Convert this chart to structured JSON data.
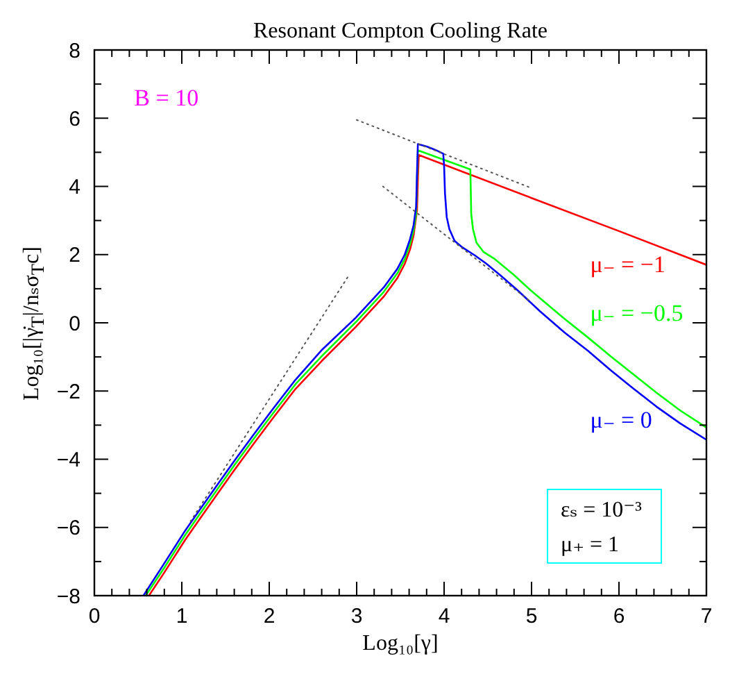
{
  "chart_data": {
    "type": "line",
    "title": "Resonant Compton Cooling Rate",
    "xlabel": "Log₁₀[γ]",
    "ylabel": "Log₁₀[|γ̇$_{T}$|/nₛσ$_{T}$c]",
    "annotations": [
      "B = 10",
      "εₛ = 10⁻³",
      "μ₊ = 1"
    ],
    "xlim": [
      0,
      7
    ],
    "xticks": [
      0,
      {
        "value": 0.2,
        "label": null
      },
      {
        "value": 0.4,
        "label": null
      },
      {
        "value": 0.6,
        "label": null
      },
      {
        "value": 0.8,
        "label": null
      },
      1,
      {
        "value": 1.2,
        "label": null
      },
      {
        "value": 1.4,
        "label": null
      },
      {
        "value": 1.6,
        "label": null
      },
      {
        "value": 1.8,
        "label": null
      },
      2,
      {
        "value": 2.2,
        "label": null
      },
      {
        "value": 2.4,
        "label": null
      },
      {
        "value": 2.6,
        "label": null
      },
      {
        "value": 2.8,
        "label": null
      },
      3,
      {
        "value": 3.2,
        "label": null
      },
      {
        "value": 3.4,
        "label": null
      },
      {
        "value": 3.6,
        "label": null
      },
      {
        "value": 3.8,
        "label": null
      },
      4,
      {
        "value": 4.2,
        "label": null
      },
      {
        "value": 4.4,
        "label": null
      },
      {
        "value": 4.6,
        "label": null
      },
      {
        "value": 4.8,
        "label": null
      },
      5,
      {
        "value": 5.2,
        "label": null
      },
      {
        "value": 5.4,
        "label": null
      },
      {
        "value": 5.6,
        "label": null
      },
      {
        "value": 5.8,
        "label": null
      },
      6,
      {
        "value": 6.2,
        "label": null
      },
      {
        "value": 6.4,
        "label": null
      },
      {
        "value": 6.6,
        "label": null
      },
      {
        "value": 6.8,
        "label": null
      },
      7
    ],
    "ylim": [
      -8,
      8
    ],
    "yticks": [
      -8,
      {
        "value": -7,
        "label": null
      },
      -6,
      {
        "value": -5,
        "label": null
      },
      -4,
      {
        "value": -3,
        "label": null
      },
      -2,
      {
        "value": -1,
        "label": null
      },
      0,
      {
        "value": 1,
        "label": null
      },
      2,
      {
        "value": 3,
        "label": null
      },
      4,
      {
        "value": 5,
        "label": null
      },
      6,
      {
        "value": 7,
        "label": null
      },
      8
    ],
    "series": [
      {
        "name": "μ₋ = −1",
        "color": "#ff0000",
        "line_style": "solid",
        "x": [
          0.624,
          0.8,
          1.037,
          1.2,
          1.407,
          1.6,
          1.829,
          2.05,
          2.3,
          2.6,
          2.99,
          3.31,
          3.467,
          3.55,
          3.61,
          3.65,
          3.69,
          3.7,
          3.71,
          5.0,
          6.0,
          7.0
        ],
        "values": [
          -8,
          -7.32,
          -6.37,
          -5.77,
          -5.02,
          -4.32,
          -3.52,
          -2.77,
          -1.94,
          -1.12,
          -0.12,
          0.77,
          1.32,
          1.73,
          2.15,
          2.55,
          3.3,
          4.2,
          4.92,
          3.66,
          2.69,
          1.7
        ]
      },
      {
        "name": "μ₋ = −0.5",
        "color": "#00ff00",
        "line_style": "solid",
        "x": [
          0.587,
          0.8,
          1.037,
          1.2,
          1.407,
          1.6,
          1.829,
          2.05,
          2.3,
          2.6,
          2.99,
          3.31,
          3.467,
          3.55,
          3.61,
          3.65,
          3.68,
          3.69,
          3.7,
          4.3,
          4.305,
          4.31,
          4.33,
          4.37,
          4.45,
          4.58,
          4.8,
          5.0,
          5.2,
          5.38,
          5.65,
          5.9,
          6.15,
          6.43,
          6.7,
          7.0
        ],
        "values": [
          -8,
          -7.18,
          -6.23,
          -5.63,
          -4.88,
          -4.18,
          -3.38,
          -2.63,
          -1.8,
          -0.98,
          0.02,
          0.91,
          1.46,
          1.87,
          2.3,
          2.7,
          3.2,
          4.2,
          5.06,
          4.5,
          3.9,
          3.2,
          2.75,
          2.35,
          2.08,
          1.87,
          1.4,
          0.93,
          0.5,
          0.11,
          -0.44,
          -0.97,
          -1.48,
          -2.05,
          -2.57,
          -3.07
        ]
      },
      {
        "name": "μ₋ = 0",
        "color": "#0000ff",
        "line_style": "solid",
        "x": [
          0.561,
          0.8,
          1.037,
          1.2,
          1.407,
          1.6,
          1.829,
          2.05,
          2.3,
          2.6,
          2.99,
          3.31,
          3.467,
          3.55,
          3.61,
          3.65,
          3.68,
          3.69,
          3.7,
          3.8,
          3.9,
          3.99,
          4.0,
          4.01,
          4.03,
          4.06,
          4.12,
          4.21,
          4.35,
          4.48,
          4.65,
          4.85,
          5.1,
          5.38,
          5.65,
          5.9,
          6.15,
          6.43,
          6.7,
          7.0
        ],
        "values": [
          -8,
          -7.05,
          -6.1,
          -5.5,
          -4.75,
          -4.05,
          -3.25,
          -2.5,
          -1.67,
          -0.8,
          0.15,
          1.04,
          1.59,
          2.0,
          2.45,
          2.85,
          3.4,
          4.4,
          5.24,
          5.17,
          5.07,
          4.96,
          4.6,
          3.8,
          3.1,
          2.75,
          2.4,
          2.21,
          1.98,
          1.74,
          1.38,
          0.93,
          0.33,
          -0.29,
          -0.83,
          -1.38,
          -1.9,
          -2.46,
          -2.95,
          -3.43
        ]
      },
      {
        "type": "line",
        "color": "#555555",
        "line_style": "dotted",
        "x": [
          1.1,
          2.9
        ],
        "values": [
          -5.82,
          1.35
        ]
      },
      {
        "type": "line",
        "color": "#555555",
        "line_style": "dotted",
        "x": [
          3.0,
          5.0
        ],
        "values": [
          5.95,
          3.95
        ]
      },
      {
        "type": "line",
        "color": "#555555",
        "line_style": "dotted",
        "x": [
          3.3,
          5.0
        ],
        "values": [
          4.0,
          0.6
        ]
      }
    ]
  }
}
